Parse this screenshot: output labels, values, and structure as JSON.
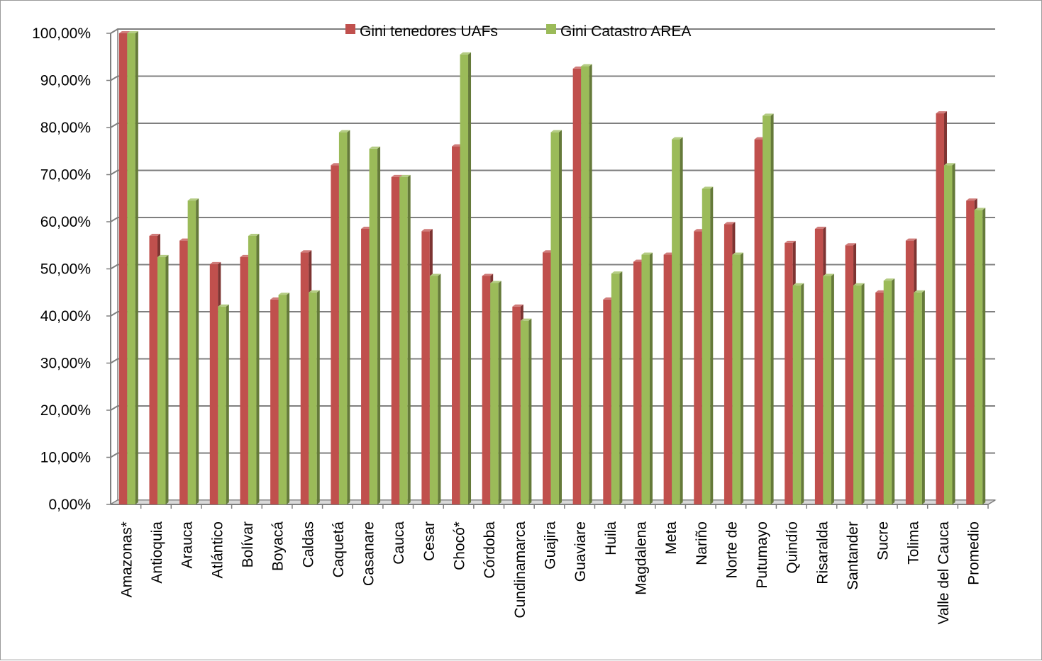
{
  "chart_data": {
    "type": "bar",
    "title": "",
    "xlabel": "",
    "ylabel": "",
    "ylim": [
      0,
      1
    ],
    "y_ticks": [
      "0,00%",
      "10,00%",
      "20,00%",
      "30,00%",
      "40,00%",
      "50,00%",
      "60,00%",
      "70,00%",
      "80,00%",
      "90,00%",
      "100,00%"
    ],
    "grid": true,
    "legend_position": "top-center",
    "categories": [
      "Amazonas*",
      "Antioquia",
      "Arauca",
      "Atlántico",
      "Bolívar",
      "Boyacá",
      "Caldas",
      "Caquetá",
      "Casanare",
      "Cauca",
      "Cesar",
      "Chocó*",
      "Córdoba",
      "Cundinamarca",
      "Guajira",
      "Guaviare",
      "Huila",
      "Magdalena",
      "Meta",
      "Nariño",
      "Norte de",
      "Putumayo",
      "Quindío",
      "Risaralda",
      "Santander",
      "Sucre",
      "Tolima",
      "Valle del Cauca",
      "Promedio"
    ],
    "series": [
      {
        "name": "Gini tenedores UAFs",
        "color": "#c0504d",
        "values": [
          1.0,
          0.57,
          0.56,
          0.51,
          0.525,
          0.435,
          0.535,
          0.72,
          0.585,
          0.695,
          0.58,
          0.76,
          0.485,
          0.42,
          0.535,
          0.925,
          0.435,
          0.515,
          0.53,
          0.58,
          0.595,
          0.775,
          0.555,
          0.585,
          0.55,
          0.45,
          0.56,
          0.83,
          0.645
        ]
      },
      {
        "name": "Gini Catastro AREA",
        "color": "#9bbb59",
        "values": [
          1.0,
          0.525,
          0.645,
          0.42,
          0.57,
          0.445,
          0.45,
          0.79,
          0.755,
          0.695,
          0.485,
          0.955,
          0.47,
          0.39,
          0.79,
          0.93,
          0.49,
          0.53,
          0.775,
          0.67,
          0.53,
          0.825,
          0.465,
          0.485,
          0.465,
          0.475,
          0.45,
          0.72,
          0.625
        ]
      }
    ]
  }
}
